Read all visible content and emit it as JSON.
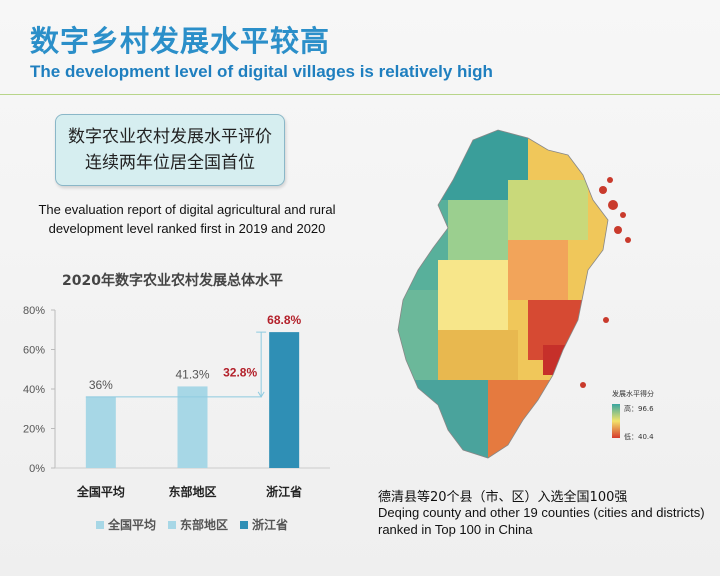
{
  "header": {
    "title_zh": "数字乡村发展水平较高",
    "title_en": "The development level of digital villages is relatively high"
  },
  "callout": {
    "line1": "数字农业农村发展水平评价",
    "line2": "连续两年位居全国首位"
  },
  "evaluation_en": "The evaluation report of digital agricultural and rural development level ranked first in 2019 and 2020",
  "chart_data": {
    "type": "bar",
    "title": "2020年数字农业农村发展总体水平",
    "categories": [
      "全国平均",
      "东部地区",
      "浙江省"
    ],
    "values": [
      36,
      41.3,
      68.8
    ],
    "value_labels": [
      "36%",
      "41.3%",
      "68.8%"
    ],
    "ylim": [
      0,
      80
    ],
    "yticks": [
      0,
      20,
      40,
      60,
      80
    ],
    "ytick_labels": [
      "0%",
      "20%",
      "40%",
      "60%",
      "80%"
    ],
    "annotation": {
      "label": "32.8%",
      "from": 36,
      "to": 68.8
    },
    "legend": [
      "全国平均",
      "东部地区",
      "浙江省"
    ],
    "legend_position": "bottom",
    "colors": [
      "#a7d7e6",
      "#a7d7e6",
      "#2f8fb5"
    ],
    "legend_colors": [
      "#a7d7e6",
      "#a7d7e6",
      "#2f8fb5"
    ],
    "highlight_color": "#b3202a"
  },
  "map": {
    "legend_title": "发展水平得分",
    "legend_high": "高：96.6",
    "legend_low": "低：40.4",
    "colors": {
      "high": "#3aa6a0",
      "mid": "#f3e36a",
      "low": "#d63a2d"
    }
  },
  "deqing": {
    "zh": "德清县等20个县（市、区）入选全国100强",
    "en": "Deqing county and other 19 counties (cities and districts) ranked in Top 100 in China"
  }
}
